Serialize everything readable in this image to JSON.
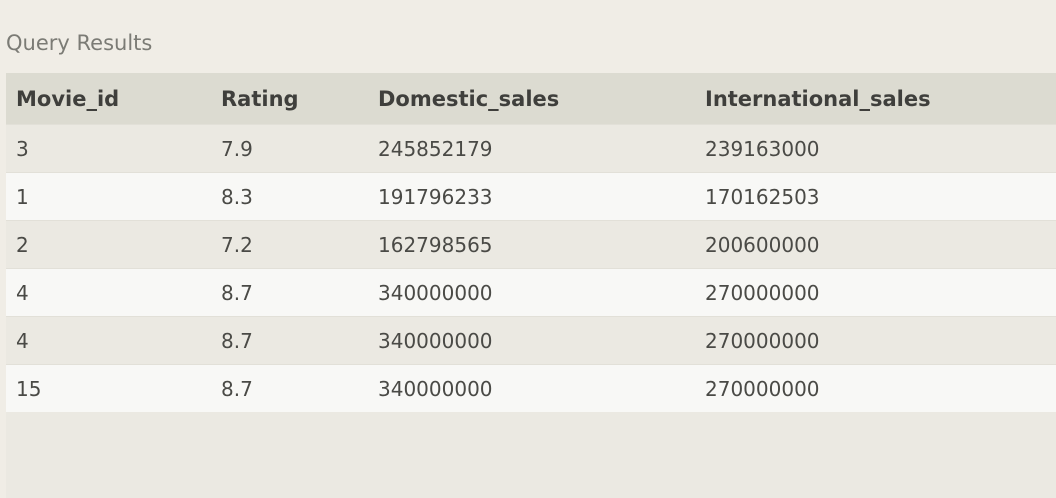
{
  "title": "Query Results",
  "table": {
    "columns": [
      "Movie_id",
      "Rating",
      "Domestic_sales",
      "International_sales"
    ],
    "rows": [
      [
        "3",
        "7.9",
        "245852179",
        "239163000"
      ],
      [
        "1",
        "8.3",
        "191796233",
        "170162503"
      ],
      [
        "2",
        "7.2",
        "162798565",
        "200600000"
      ],
      [
        "4",
        "8.7",
        "340000000",
        "270000000"
      ],
      [
        "4",
        "8.7",
        "340000000",
        "270000000"
      ],
      [
        "15",
        "8.7",
        "340000000",
        "270000000"
      ]
    ]
  },
  "colors": {
    "background": "#f0ede6",
    "header_background": "#dcdbd1",
    "row_odd": "#ebe9e2",
    "row_even": "#f8f8f6"
  }
}
